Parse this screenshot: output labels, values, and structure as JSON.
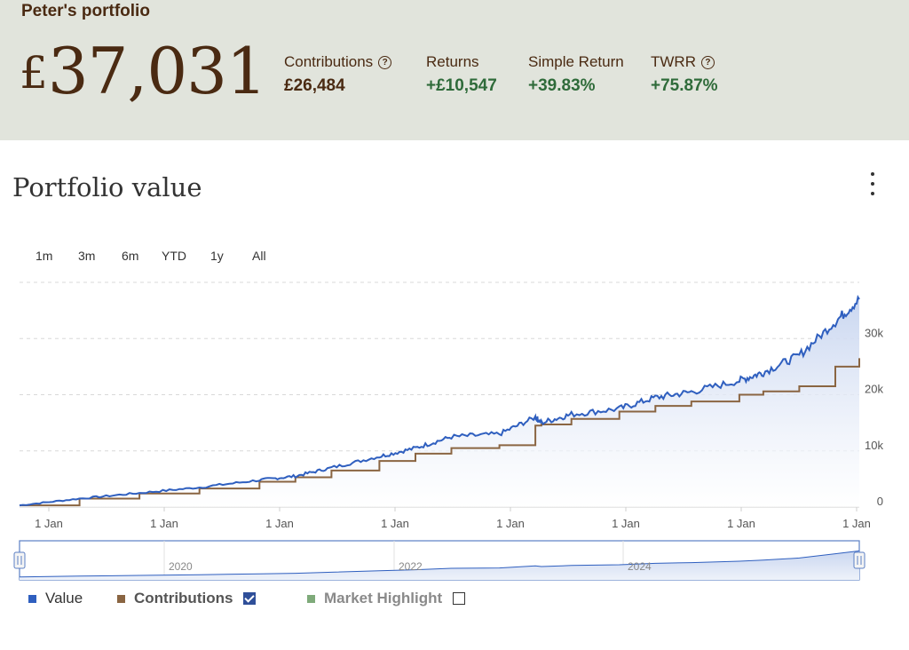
{
  "header": {
    "portfolio_name": "Peter's portfolio",
    "currency_symbol": "£",
    "total_value": "37,031",
    "metrics": [
      {
        "label": "Contributions",
        "value": "£26,484",
        "help": true,
        "positive": false
      },
      {
        "label": "Returns",
        "value": "+£10,547",
        "help": false,
        "positive": true
      },
      {
        "label": "Simple Return",
        "value": "+39.83%",
        "help": false,
        "positive": true
      },
      {
        "label": "TWRR",
        "value": "+75.87%",
        "help": true,
        "positive": true
      }
    ],
    "help_glyph": "?"
  },
  "card": {
    "title": "Portfolio value",
    "menu_icon": "vertical-dots-icon"
  },
  "range_buttons": [
    "1m",
    "3m",
    "6m",
    "YTD",
    "1y",
    "All"
  ],
  "navigator": {
    "year_labels": [
      "2020",
      "2022",
      "2024"
    ]
  },
  "legend": {
    "items": [
      {
        "label": "Value",
        "color": "#2f5fbf",
        "checkbox": false,
        "checked": false,
        "bold": false,
        "muted": false
      },
      {
        "label": "Contributions",
        "color": "#8a6542",
        "checkbox": true,
        "checked": true,
        "bold": true,
        "muted": false
      },
      {
        "label": "Market Highlight",
        "color": "#7faa7a",
        "checkbox": true,
        "checked": false,
        "bold": true,
        "muted": true
      }
    ]
  },
  "colors": {
    "value_line": "#2f5fbf",
    "contributions_line": "#8a6542",
    "header_bg": "#e1e4dc",
    "positive": "#2f6b3a",
    "brand_brown": "#4a2a12"
  },
  "chart_data": {
    "type": "line",
    "x_tick_labels": [
      "1 Jan",
      "1 Jan",
      "1 Jan",
      "1 Jan",
      "1 Jan",
      "1 Jan",
      "1 Jan",
      "1 Jan"
    ],
    "y_tick_labels": [
      "0",
      "10k",
      "20k",
      "30k"
    ],
    "ylim": [
      0,
      40000
    ],
    "x": [
      2018.0,
      2018.5,
      2019.0,
      2019.5,
      2020.0,
      2020.3,
      2020.6,
      2021.0,
      2021.3,
      2021.6,
      2022.0,
      2022.3,
      2022.35,
      2022.6,
      2023.0,
      2023.3,
      2023.6,
      2024.0,
      2024.2,
      2024.5,
      2024.8,
      2025.0
    ],
    "series": [
      {
        "name": "Value",
        "values": [
          300,
          1500,
          2500,
          3500,
          4800,
          5500,
          7000,
          9000,
          10500,
          12500,
          13000,
          16000,
          15000,
          16500,
          17500,
          19500,
          20500,
          22500,
          24000,
          27000,
          33000,
          37000
        ]
      },
      {
        "name": "Contributions",
        "values": [
          300,
          1500,
          2400,
          3300,
          4500,
          5300,
          6500,
          8200,
          9500,
          10500,
          11000,
          14500,
          14700,
          15700,
          17000,
          18000,
          18800,
          20000,
          20600,
          21500,
          25000,
          26500
        ]
      }
    ],
    "grid": true,
    "legend_position": "bottom-left"
  }
}
